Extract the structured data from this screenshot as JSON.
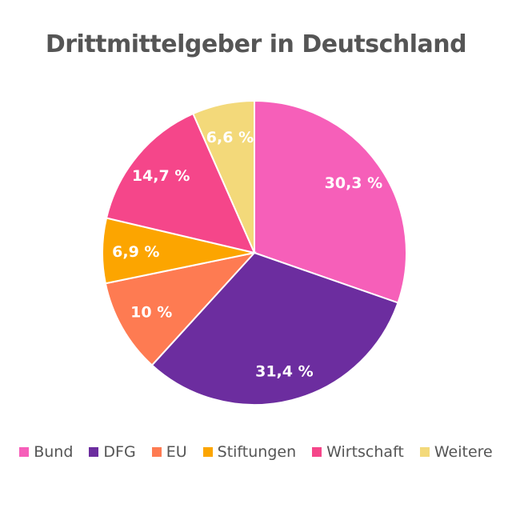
{
  "chart_data": {
    "type": "pie",
    "title": "Drittmittelgeber in Deutschland",
    "categories": [
      "Bund",
      "DFG",
      "EU",
      "Stiftungen",
      "Wirtschaft",
      "Weitere"
    ],
    "values": [
      30.3,
      31.4,
      10,
      6.9,
      14.7,
      6.6
    ],
    "labels": [
      "30,3 %",
      "31,4 %",
      "10 %",
      "6,9 %",
      "14,7 %",
      "6,6 %"
    ],
    "colors": [
      "#f65fb9",
      "#6c2d9f",
      "#fe7b52",
      "#fca500",
      "#f5468a",
      "#f3d97a"
    ],
    "legend_position": "bottom"
  }
}
